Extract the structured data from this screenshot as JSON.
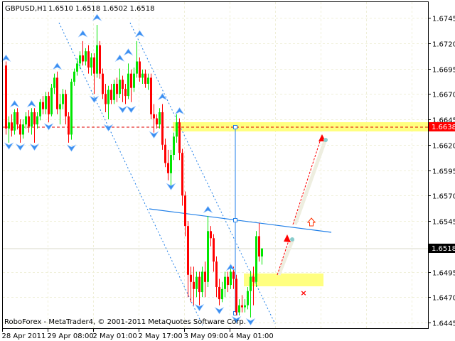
{
  "header": {
    "symbol": "GBPUSD,H1",
    "ohlc": "1.6510 1.6518 1.6502 1.6518"
  },
  "footer": {
    "copyright": "RoboForex - MetaTrader4, © 2001-2011 MetaQuotes Software Corp."
  },
  "colors": {
    "bull": "#00e600",
    "bear": "#ff0000",
    "fractal": "#3a8ef0",
    "trendline": "#1e7ee8",
    "zone": "#ffff80",
    "grid": "#efefd8"
  },
  "chart_data": {
    "type": "candlestick",
    "symbol": "GBPUSD",
    "timeframe": "H1",
    "ylim": [
      1.6435,
      1.676
    ],
    "y_ticks": [
      "1.6745",
      "1.6720",
      "1.6695",
      "1.6670",
      "1.6645",
      "1.6620",
      "1.6595",
      "1.6570",
      "1.6545",
      "1.6495",
      "1.6470",
      "1.6445"
    ],
    "x_ticks": [
      "28 Apr 2011",
      "29 Apr 08:00",
      "2 May 01:00",
      "2 May 17:00",
      "3 May 09:00",
      "4 May 01:00"
    ],
    "grid": true,
    "last_price": {
      "label": "1.6518",
      "value": 1.6518
    },
    "target_level": {
      "label": "1.6638",
      "value": 1.6638
    },
    "candles_ohlc": [
      [
        1.6698,
        1.6702,
        1.663,
        1.6636
      ],
      [
        1.6636,
        1.6648,
        1.6622,
        1.6642
      ],
      [
        1.6642,
        1.665,
        1.6628,
        1.6634
      ],
      [
        1.6634,
        1.6655,
        1.663,
        1.6652
      ],
      [
        1.6652,
        1.6656,
        1.6635,
        1.664
      ],
      [
        1.664,
        1.6645,
        1.6622,
        1.663
      ],
      [
        1.663,
        1.6645,
        1.6626,
        1.664
      ],
      [
        1.664,
        1.6652,
        1.6636,
        1.6648
      ],
      [
        1.6648,
        1.6654,
        1.6632,
        1.6638
      ],
      [
        1.6638,
        1.6656,
        1.663,
        1.6652
      ],
      [
        1.6652,
        1.6656,
        1.6622,
        1.664
      ],
      [
        1.664,
        1.6652,
        1.6636,
        1.6648
      ],
      [
        1.6648,
        1.6665,
        1.6644,
        1.6662
      ],
      [
        1.6662,
        1.6668,
        1.665,
        1.6655
      ],
      [
        1.6655,
        1.6672,
        1.665,
        1.6668
      ],
      [
        1.6668,
        1.6672,
        1.6642,
        1.665
      ],
      [
        1.665,
        1.668,
        1.6648,
        1.6676
      ],
      [
        1.6676,
        1.669,
        1.667,
        1.6686
      ],
      [
        1.6686,
        1.6692,
        1.665,
        1.6655
      ],
      [
        1.6655,
        1.667,
        1.664,
        1.666
      ],
      [
        1.666,
        1.6675,
        1.6655,
        1.667
      ],
      [
        1.667,
        1.6674,
        1.664,
        1.6648
      ],
      [
        1.6648,
        1.6652,
        1.6622,
        1.663
      ],
      [
        1.663,
        1.6685,
        1.6625,
        1.6682
      ],
      [
        1.6682,
        1.6695,
        1.6678,
        1.6692
      ],
      [
        1.6692,
        1.6705,
        1.6688,
        1.67
      ],
      [
        1.67,
        1.6712,
        1.6695,
        1.6708
      ],
      [
        1.6708,
        1.6722,
        1.6698,
        1.6702
      ],
      [
        1.6702,
        1.6715,
        1.6698,
        1.6712
      ],
      [
        1.6712,
        1.6718,
        1.669,
        1.6696
      ],
      [
        1.6696,
        1.671,
        1.6688,
        1.6706
      ],
      [
        1.6706,
        1.671,
        1.667,
        1.669
      ],
      [
        1.669,
        1.6738,
        1.6686,
        1.6718
      ],
      [
        1.6718,
        1.6722,
        1.6685,
        1.669
      ],
      [
        1.669,
        1.6695,
        1.6665,
        1.667
      ],
      [
        1.667,
        1.668,
        1.6652,
        1.666
      ],
      [
        1.666,
        1.6678,
        1.6645,
        1.6674
      ],
      [
        1.6674,
        1.668,
        1.666,
        1.6664
      ],
      [
        1.6664,
        1.6684,
        1.666,
        1.668
      ],
      [
        1.668,
        1.6686,
        1.6662,
        1.667
      ],
      [
        1.667,
        1.6695,
        1.6666,
        1.6684
      ],
      [
        1.6684,
        1.6688,
        1.6662,
        1.6675
      ],
      [
        1.6675,
        1.668,
        1.666,
        1.6668
      ],
      [
        1.6668,
        1.67,
        1.6665,
        1.669
      ],
      [
        1.669,
        1.6694,
        1.6662,
        1.6676
      ],
      [
        1.6676,
        1.6696,
        1.6672,
        1.669
      ],
      [
        1.669,
        1.6722,
        1.6686,
        1.6702
      ],
      [
        1.6702,
        1.6706,
        1.6682,
        1.6686
      ],
      [
        1.6686,
        1.6694,
        1.668,
        1.669
      ],
      [
        1.669,
        1.6694,
        1.6676,
        1.668
      ],
      [
        1.668,
        1.669,
        1.6674,
        1.6686
      ],
      [
        1.6686,
        1.669,
        1.6645,
        1.665
      ],
      [
        1.665,
        1.666,
        1.6632,
        1.6646
      ],
      [
        1.6646,
        1.665,
        1.6636,
        1.664
      ],
      [
        1.664,
        1.6656,
        1.6636,
        1.6652
      ],
      [
        1.6652,
        1.666,
        1.6615,
        1.662
      ],
      [
        1.662,
        1.6626,
        1.6598,
        1.6602
      ],
      [
        1.6602,
        1.6615,
        1.6585,
        1.6592
      ],
      [
        1.6592,
        1.6615,
        1.658,
        1.661
      ],
      [
        1.661,
        1.6632,
        1.6605,
        1.6628
      ],
      [
        1.6628,
        1.665,
        1.6622,
        1.6642
      ],
      [
        1.6642,
        1.6646,
        1.6605,
        1.6612
      ],
      [
        1.6612,
        1.6616,
        1.656,
        1.657
      ],
      [
        1.657,
        1.6574,
        1.653,
        1.654
      ],
      [
        1.654,
        1.6545,
        1.647,
        1.6492
      ],
      [
        1.6492,
        1.65,
        1.6465,
        1.6485
      ],
      [
        1.6485,
        1.65,
        1.6462,
        1.6478
      ],
      [
        1.6478,
        1.6495,
        1.647,
        1.649
      ],
      [
        1.649,
        1.6495,
        1.6462,
        1.6475
      ],
      [
        1.6475,
        1.65,
        1.647,
        1.6495
      ],
      [
        1.6495,
        1.6505,
        1.647,
        1.6485
      ],
      [
        1.6485,
        1.655,
        1.648,
        1.6535
      ],
      [
        1.6535,
        1.654,
        1.652,
        1.6528
      ],
      [
        1.6528,
        1.6532,
        1.6495,
        1.6505
      ],
      [
        1.6505,
        1.651,
        1.647,
        1.648
      ],
      [
        1.648,
        1.6488,
        1.6462,
        1.6468
      ],
      [
        1.6468,
        1.6485,
        1.6465,
        1.6478
      ],
      [
        1.6478,
        1.6495,
        1.647,
        1.649
      ],
      [
        1.649,
        1.6495,
        1.6475,
        1.6482
      ],
      [
        1.6482,
        1.65,
        1.6478,
        1.6495
      ],
      [
        1.6495,
        1.65,
        1.6478,
        1.6488
      ],
      [
        1.6488,
        1.6492,
        1.6452,
        1.6455
      ],
      [
        1.6455,
        1.6468,
        1.6452,
        1.6462
      ],
      [
        1.6462,
        1.6472,
        1.6455,
        1.646
      ],
      [
        1.646,
        1.6468,
        1.6455,
        1.6462
      ],
      [
        1.6462,
        1.648,
        1.6458,
        1.6476
      ],
      [
        1.6476,
        1.6496,
        1.645,
        1.649
      ],
      [
        1.649,
        1.65,
        1.6462,
        1.6485
      ],
      [
        1.6485,
        1.6535,
        1.648,
        1.653
      ],
      [
        1.653,
        1.6543,
        1.6505,
        1.651
      ],
      [
        1.651,
        1.6518,
        1.6502,
        1.6518
      ]
    ],
    "fractals_up": [
      [
        0,
        1.6705
      ],
      [
        3,
        1.666
      ],
      [
        9,
        1.666
      ],
      [
        18,
        1.6697
      ],
      [
        27,
        1.6729
      ],
      [
        32,
        1.6745
      ],
      [
        40,
        1.6705
      ],
      [
        43,
        1.6711
      ],
      [
        47,
        1.6729
      ],
      [
        55,
        1.6667
      ],
      [
        61,
        1.6653
      ],
      [
        71,
        1.6556
      ],
      [
        79,
        1.6499
      ]
    ],
    "fractals_down": [
      [
        1,
        1.6619
      ],
      [
        5,
        1.6618
      ],
      [
        10,
        1.6618
      ],
      [
        15,
        1.6638
      ],
      [
        23,
        1.6617
      ],
      [
        31,
        1.6665
      ],
      [
        36,
        1.6637
      ],
      [
        41,
        1.6655
      ],
      [
        44,
        1.6655
      ],
      [
        52,
        1.663
      ],
      [
        58,
        1.6579
      ],
      [
        68,
        1.646
      ],
      [
        75,
        1.6457
      ],
      [
        81,
        1.6448
      ],
      [
        86,
        1.6446
      ]
    ]
  }
}
